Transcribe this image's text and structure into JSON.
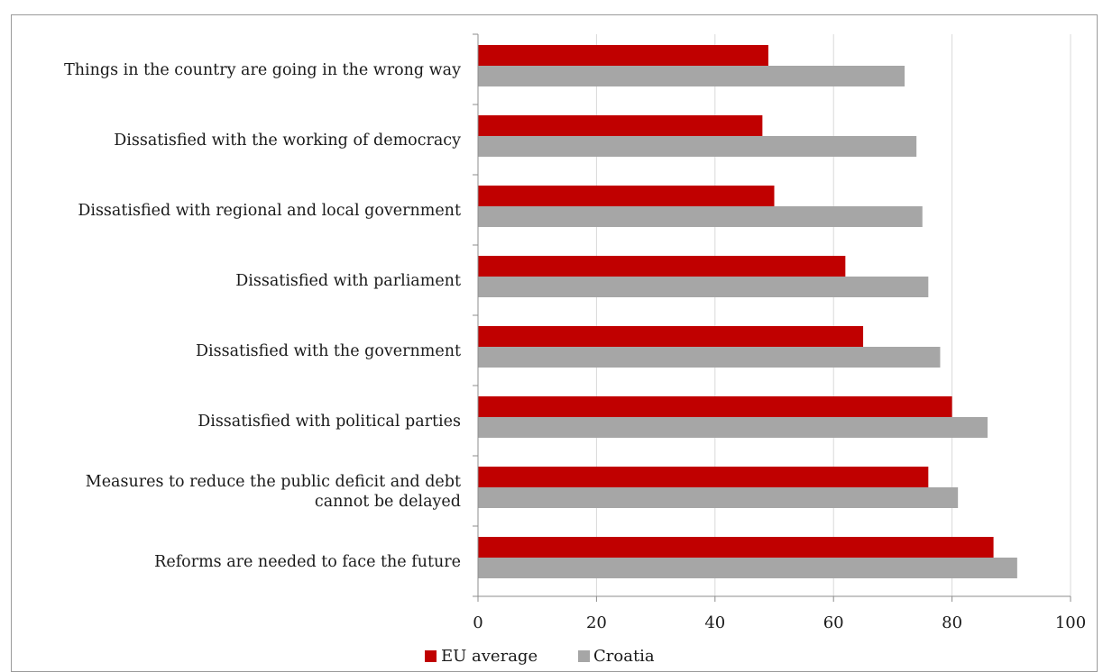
{
  "caption": "",
  "chart_data": {
    "type": "bar",
    "orientation": "horizontal",
    "title": "",
    "xlabel": "",
    "ylabel": "",
    "xlim": [
      0,
      100
    ],
    "ticks": [
      "0",
      "20",
      "40",
      "60",
      "80",
      "100"
    ],
    "tick_values": [
      0,
      20,
      40,
      60,
      80,
      100
    ],
    "grid": true,
    "legend_position": "bottom",
    "categories": [
      [
        "Things in the country are going in the wrong way"
      ],
      [
        "Dissatisfied with the working of democracy"
      ],
      [
        "Dissatisfied with regional and local government"
      ],
      [
        "Dissatisfied with parliament"
      ],
      [
        "Dissatisfied with the government"
      ],
      [
        "Dissatisfied with political parties"
      ],
      [
        "Measures to reduce the public deficit and debt",
        "cannot be delayed"
      ],
      [
        "Reforms are needed to face the future"
      ]
    ],
    "series": [
      {
        "name": "EU average",
        "color": "#c00000",
        "values": [
          49,
          48,
          50,
          62,
          65,
          80,
          76,
          87
        ]
      },
      {
        "name": "Croatia",
        "color": "#a6a6a6",
        "values": [
          72,
          74,
          75,
          76,
          78,
          86,
          81,
          91
        ]
      }
    ]
  }
}
